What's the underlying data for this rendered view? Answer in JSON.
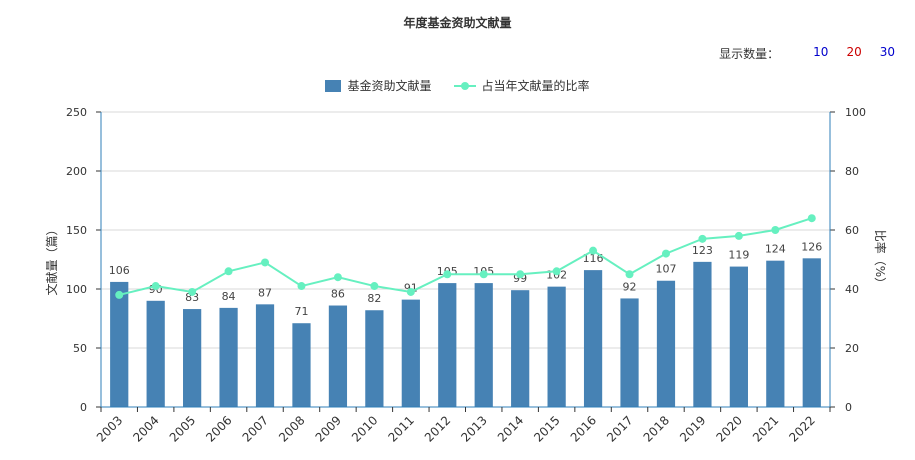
{
  "title": "年度基金资助文献量",
  "display_count": {
    "label": "显示数量：",
    "options": [
      {
        "label": "10",
        "color": "#0000cc"
      },
      {
        "label": "20",
        "color": "#cc0000"
      },
      {
        "label": "30",
        "color": "#0000cc"
      }
    ]
  },
  "chart_data": {
    "type": "bar",
    "legend_position": "top-center",
    "categories": [
      "2003",
      "2004",
      "2005",
      "2006",
      "2007",
      "2008",
      "2009",
      "2010",
      "2011",
      "2012",
      "2013",
      "2014",
      "2015",
      "2016",
      "2017",
      "2018",
      "2019",
      "2020",
      "2021",
      "2022"
    ],
    "series": [
      {
        "name": "基金资助文献量",
        "type": "bar",
        "axis": "left",
        "color": "#4682b4",
        "values": [
          106,
          90,
          83,
          84,
          87,
          71,
          86,
          82,
          91,
          105,
          105,
          99,
          102,
          116,
          92,
          107,
          123,
          119,
          124,
          126
        ]
      },
      {
        "name": "占当年文献量的比率",
        "type": "line",
        "axis": "right",
        "color": "#66f0c0",
        "values": [
          38,
          41,
          39,
          46,
          49,
          41,
          44,
          41,
          39,
          45,
          45,
          45,
          46,
          53,
          45,
          52,
          57,
          58,
          60,
          64
        ]
      }
    ],
    "y_left": {
      "label": "文献量（篇）",
      "min": 0,
      "max": 250,
      "ticks": [
        "0",
        "50",
        "100",
        "150",
        "200",
        "250"
      ]
    },
    "y_right": {
      "label": "比率（%）",
      "min": 0,
      "max": 100,
      "ticks": [
        "0",
        "20",
        "40",
        "60",
        "80",
        "100"
      ]
    },
    "grid": true
  }
}
